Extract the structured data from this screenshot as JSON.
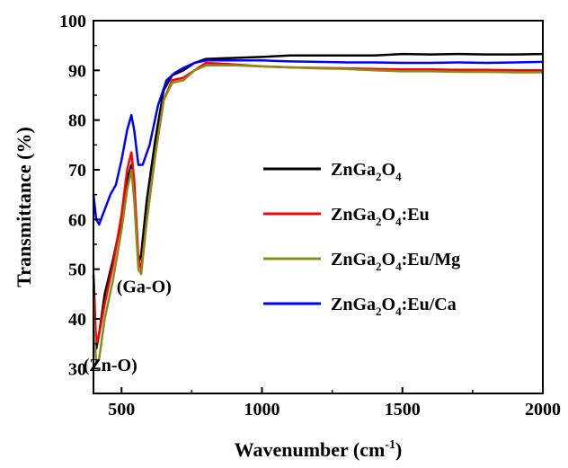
{
  "chart_data": {
    "type": "line",
    "title": "",
    "xlabel": "Wavenumber (cm",
    "xlabel_sup": "-1",
    "xlabel_close": ")",
    "ylabel": "Transmittance (%)",
    "xlim": [
      400,
      2000
    ],
    "ylim": [
      25,
      100
    ],
    "grid": false,
    "legend_position": "center-right",
    "x_ticks": [
      {
        "value": 500,
        "label": "500"
      },
      {
        "value": 1000,
        "label": "1000"
      },
      {
        "value": 1500,
        "label": "1500"
      },
      {
        "value": 2000,
        "label": "2000"
      }
    ],
    "y_ticks": [
      {
        "value": 30,
        "label": "30"
      },
      {
        "value": 40,
        "label": "40"
      },
      {
        "value": 50,
        "label": "50"
      },
      {
        "value": 60,
        "label": "60"
      },
      {
        "value": 70,
        "label": "70"
      },
      {
        "value": 80,
        "label": "80"
      },
      {
        "value": 90,
        "label": "90"
      },
      {
        "value": 100,
        "label": "100"
      }
    ],
    "annotations": [
      {
        "text": "(Ga-O)",
        "x": 580,
        "y": 45.3
      },
      {
        "text": "(Zn-O)",
        "x": 460,
        "y": 29.5
      }
    ],
    "series": [
      {
        "legend": {
          "base": "ZnGa",
          "s1": "2",
          "mid": "O",
          "s2": "4",
          "suffix": ""
        },
        "color": "#000000",
        "x": [
          400,
          410,
          420,
          440,
          470,
          500,
          520,
          535,
          545,
          560,
          570,
          590,
          620,
          650,
          680,
          720,
          760,
          800,
          900,
          1000,
          1100,
          1200,
          1300,
          1400,
          1500,
          1600,
          1700,
          1800,
          1900,
          2000
        ],
        "y": [
          49,
          34,
          37,
          45,
          52,
          60,
          68,
          71,
          66,
          51,
          53,
          64,
          76,
          86,
          89,
          90,
          91.5,
          92.3,
          92.5,
          92.7,
          93,
          93,
          93,
          93,
          93.3,
          93.2,
          93.3,
          93.2,
          93.2,
          93.3
        ]
      },
      {
        "legend": {
          "base": "ZnGa",
          "s1": "2",
          "mid": "O",
          "s2": "4",
          "suffix": ":Eu"
        },
        "color": "#ff0000",
        "x": [
          400,
          410,
          420,
          440,
          470,
          500,
          520,
          535,
          545,
          560,
          570,
          590,
          620,
          650,
          680,
          720,
          760,
          800,
          900,
          1000,
          1100,
          1200,
          1300,
          1400,
          1500,
          1600,
          1700,
          1800,
          1900,
          2000
        ],
        "y": [
          46,
          35,
          37,
          43,
          51,
          61,
          70,
          73.5,
          68,
          52,
          50,
          60,
          73,
          84,
          88,
          88.5,
          90,
          91.5,
          91.2,
          90.8,
          90.6,
          90.5,
          90.4,
          90.3,
          90.2,
          90.2,
          90.1,
          90.1,
          90,
          90
        ]
      },
      {
        "legend": {
          "base": "ZnGa",
          "s1": "2",
          "mid": "O",
          "s2": "4",
          "suffix": ":Eu/Mg"
        },
        "color": "#8b8b1a",
        "x": [
          400,
          410,
          420,
          440,
          470,
          500,
          520,
          535,
          545,
          560,
          570,
          590,
          620,
          650,
          680,
          720,
          760,
          800,
          900,
          1000,
          1100,
          1200,
          1300,
          1400,
          1500,
          1600,
          1700,
          1800,
          1900,
          2000
        ],
        "y": [
          40,
          31,
          32,
          40,
          48,
          58,
          66,
          70,
          64,
          50,
          49,
          60,
          73,
          84,
          87.5,
          88,
          90,
          91,
          91,
          90.8,
          90.6,
          90.4,
          90.3,
          90,
          89.8,
          89.8,
          89.7,
          89.7,
          89.6,
          89.6
        ]
      },
      {
        "legend": {
          "base": "ZnGa",
          "s1": "2",
          "mid": "O",
          "s2": "4",
          "suffix": ":Eu/Ca"
        },
        "color": "#0000ff",
        "x": [
          400,
          410,
          420,
          440,
          460,
          480,
          500,
          520,
          535,
          545,
          560,
          575,
          600,
          630,
          660,
          690,
          720,
          760,
          800,
          900,
          1000,
          1100,
          1200,
          1300,
          1400,
          1500,
          1600,
          1700,
          1800,
          1900,
          2000
        ],
        "y": [
          65,
          60,
          59,
          62,
          65,
          67,
          72,
          78,
          81,
          78,
          71,
          71,
          75,
          83,
          88,
          89.5,
          90.5,
          91.5,
          92,
          92,
          92,
          91.8,
          91.7,
          91.6,
          91.6,
          91.5,
          91.5,
          91.6,
          91.5,
          91.6,
          91.7
        ]
      }
    ]
  }
}
